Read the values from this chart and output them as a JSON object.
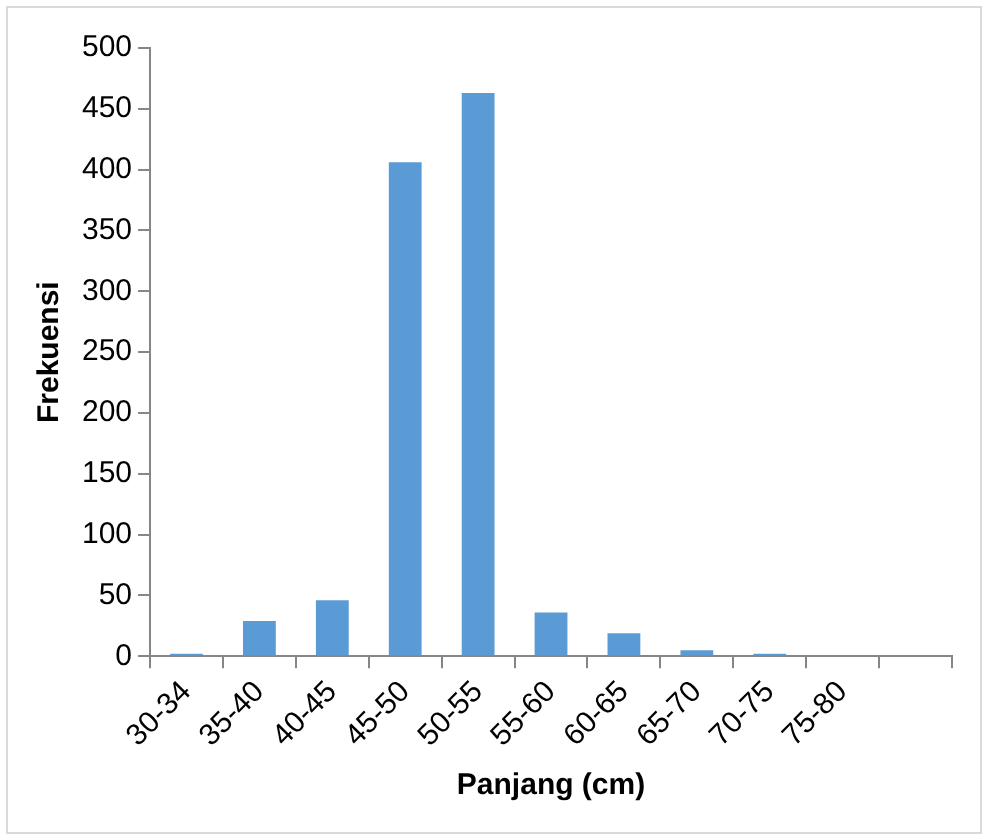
{
  "chart_data": {
    "type": "bar",
    "xlabel": "Panjang (cm)",
    "ylabel": "Frekuensi",
    "categories": [
      "30-34",
      "35-40",
      "40-45",
      "45-50",
      "50-55",
      "55-60",
      "60-65",
      "65-70",
      "70-75",
      "75-80",
      null
    ],
    "values": [
      2,
      29,
      46,
      406,
      463,
      36,
      19,
      5,
      2,
      0,
      0
    ],
    "color": "#5b9bd5",
    "ylim": [
      0,
      500
    ],
    "yticks": [
      0,
      50,
      100,
      150,
      200,
      250,
      300,
      350,
      400,
      450,
      500
    ],
    "grid": false,
    "legend": false
  }
}
